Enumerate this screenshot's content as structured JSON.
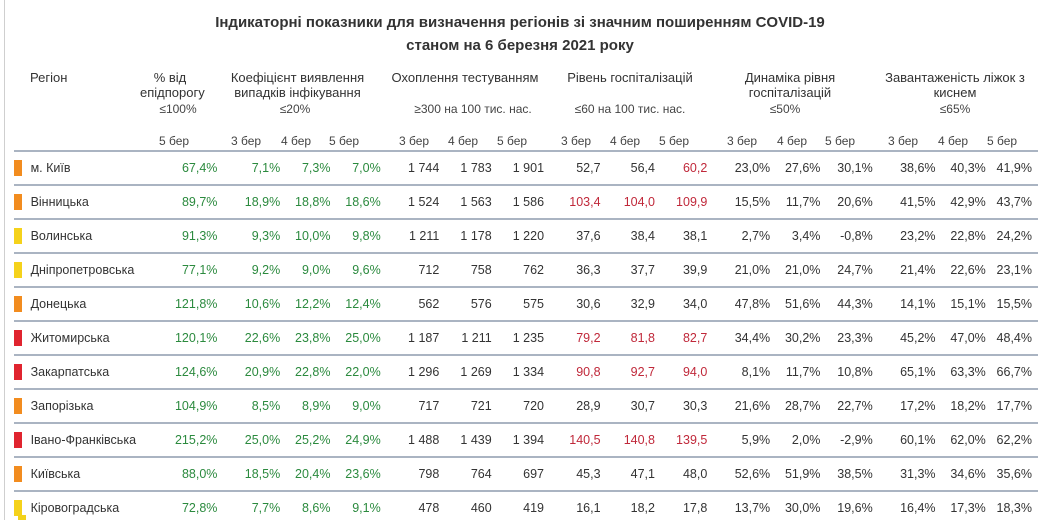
{
  "title_line1": "Індикаторні показники для визначення регіонів зі значним поширенням COVID-19",
  "title_line2": "станом на 6 березня 2021 року",
  "columns": {
    "region": "Регіон",
    "pct_threshold": {
      "label": "% від епідпорогу",
      "threshold": "≤100%",
      "days": [
        "5 бер"
      ]
    },
    "detection": {
      "label": "Коефіцієнт виявлення випадків інфікування",
      "threshold": "≤20%",
      "days": [
        "3 бер",
        "4 бер",
        "5 бер"
      ]
    },
    "testing": {
      "label": "Охоплення тестуванням",
      "threshold": "≥300 на 100 тис. нас.",
      "days": [
        "3 бер",
        "4 бер",
        "5 бер"
      ]
    },
    "hospital": {
      "label": "Рівень госпіталізацій",
      "threshold": "≤60 на 100 тис. нас.",
      "days": [
        "3 бер",
        "4 бер",
        "5 бер"
      ]
    },
    "dynamics": {
      "label": "Динаміка рівня госпіталізацій",
      "threshold": "≤50%",
      "days": [
        "3 бер",
        "4 бер",
        "5 бер"
      ]
    },
    "oxygen": {
      "label": "Завантаженість ліжок з киснем",
      "threshold": "≤65%",
      "days": [
        "3 бер",
        "4 бер",
        "5 бер"
      ]
    }
  },
  "colors": {
    "orange": "#f28c1f",
    "yellow": "#f5d21b",
    "red": "#e0242f",
    "good": "#2b8a3e",
    "bad": "#c0283a"
  },
  "rows": [
    {
      "region": "м. Київ",
      "flag": "orange",
      "pct": "67,4%",
      "det": [
        "7,1%",
        "7,3%",
        "7,0%"
      ],
      "test": [
        "1 744",
        "1 783",
        "1 901"
      ],
      "hosp": [
        "52,7",
        "56,4",
        "60,2"
      ],
      "hosp_bad": [
        false,
        false,
        true
      ],
      "dyn": [
        "23,0%",
        "27,6%",
        "30,1%"
      ],
      "oxy": [
        "38,6%",
        "40,3%",
        "41,9%"
      ]
    },
    {
      "region": "Вінницька",
      "flag": "orange",
      "pct": "89,7%",
      "det": [
        "18,9%",
        "18,8%",
        "18,6%"
      ],
      "test": [
        "1 524",
        "1 563",
        "1 586"
      ],
      "hosp": [
        "103,4",
        "104,0",
        "109,9"
      ],
      "hosp_bad": [
        true,
        true,
        true
      ],
      "dyn": [
        "15,5%",
        "11,7%",
        "20,6%"
      ],
      "oxy": [
        "41,5%",
        "42,9%",
        "43,7%"
      ]
    },
    {
      "region": "Волинська",
      "flag": "yellow",
      "pct": "91,3%",
      "det": [
        "9,3%",
        "10,0%",
        "9,8%"
      ],
      "test": [
        "1 211",
        "1 178",
        "1 220"
      ],
      "hosp": [
        "37,6",
        "38,4",
        "38,1"
      ],
      "hosp_bad": [
        false,
        false,
        false
      ],
      "dyn": [
        "2,7%",
        "3,4%",
        "-0,8%"
      ],
      "oxy": [
        "23,2%",
        "22,8%",
        "24,2%"
      ]
    },
    {
      "region": "Дніпропетровська",
      "flag": "yellow",
      "pct": "77,1%",
      "det": [
        "9,2%",
        "9,0%",
        "9,6%"
      ],
      "test": [
        "712",
        "758",
        "762"
      ],
      "hosp": [
        "36,3",
        "37,7",
        "39,9"
      ],
      "hosp_bad": [
        false,
        false,
        false
      ],
      "dyn": [
        "21,0%",
        "21,0%",
        "24,7%"
      ],
      "oxy": [
        "21,4%",
        "22,6%",
        "23,1%"
      ]
    },
    {
      "region": "Донецька",
      "flag": "orange",
      "pct": "121,8%",
      "det": [
        "10,6%",
        "12,2%",
        "12,4%"
      ],
      "test": [
        "562",
        "576",
        "575"
      ],
      "hosp": [
        "30,6",
        "32,9",
        "34,0"
      ],
      "hosp_bad": [
        false,
        false,
        false
      ],
      "dyn": [
        "47,8%",
        "51,6%",
        "44,3%"
      ],
      "oxy": [
        "14,1%",
        "15,1%",
        "15,5%"
      ]
    },
    {
      "region": "Житомирська",
      "flag": "red",
      "pct": "120,1%",
      "det": [
        "22,6%",
        "23,8%",
        "25,0%"
      ],
      "test": [
        "1 187",
        "1 211",
        "1 235"
      ],
      "hosp": [
        "79,2",
        "81,8",
        "82,7"
      ],
      "hosp_bad": [
        true,
        true,
        true
      ],
      "dyn": [
        "34,4%",
        "30,2%",
        "23,3%"
      ],
      "oxy": [
        "45,2%",
        "47,0%",
        "48,4%"
      ]
    },
    {
      "region": "Закарпатська",
      "flag": "red",
      "pct": "124,6%",
      "det": [
        "20,9%",
        "22,8%",
        "22,0%"
      ],
      "test": [
        "1 296",
        "1 269",
        "1 334"
      ],
      "hosp": [
        "90,8",
        "92,7",
        "94,0"
      ],
      "hosp_bad": [
        true,
        true,
        true
      ],
      "dyn": [
        "8,1%",
        "11,7%",
        "10,8%"
      ],
      "oxy": [
        "65,1%",
        "63,3%",
        "66,7%"
      ]
    },
    {
      "region": "Запорізька",
      "flag": "orange",
      "pct": "104,9%",
      "det": [
        "8,5%",
        "8,9%",
        "9,0%"
      ],
      "test": [
        "717",
        "721",
        "720"
      ],
      "hosp": [
        "28,9",
        "30,7",
        "30,3"
      ],
      "hosp_bad": [
        false,
        false,
        false
      ],
      "dyn": [
        "21,6%",
        "28,7%",
        "22,7%"
      ],
      "oxy": [
        "17,2%",
        "18,2%",
        "17,7%"
      ]
    },
    {
      "region": "Івано-Франківська",
      "flag": "red",
      "pct": "215,2%",
      "det": [
        "25,0%",
        "25,2%",
        "24,9%"
      ],
      "test": [
        "1 488",
        "1 439",
        "1 394"
      ],
      "hosp": [
        "140,5",
        "140,8",
        "139,5"
      ],
      "hosp_bad": [
        true,
        true,
        true
      ],
      "dyn": [
        "5,9%",
        "2,0%",
        "-2,9%"
      ],
      "oxy": [
        "60,1%",
        "62,0%",
        "62,2%"
      ]
    },
    {
      "region": "Київська",
      "flag": "orange",
      "pct": "88,0%",
      "det": [
        "18,5%",
        "20,4%",
        "23,6%"
      ],
      "test": [
        "798",
        "764",
        "697"
      ],
      "hosp": [
        "45,3",
        "47,1",
        "48,0"
      ],
      "hosp_bad": [
        false,
        false,
        false
      ],
      "dyn": [
        "52,6%",
        "51,9%",
        "38,5%"
      ],
      "oxy": [
        "31,3%",
        "34,6%",
        "35,6%"
      ]
    },
    {
      "region": "Кіровоградська",
      "flag": "yellow",
      "pct": "72,8%",
      "det": [
        "7,7%",
        "8,6%",
        "9,1%"
      ],
      "test": [
        "478",
        "460",
        "419"
      ],
      "hosp": [
        "16,1",
        "18,2",
        "17,8"
      ],
      "hosp_bad": [
        false,
        false,
        false
      ],
      "dyn": [
        "13,7%",
        "30,0%",
        "19,6%"
      ],
      "oxy": [
        "16,4%",
        "17,3%",
        "18,3%"
      ]
    }
  ]
}
